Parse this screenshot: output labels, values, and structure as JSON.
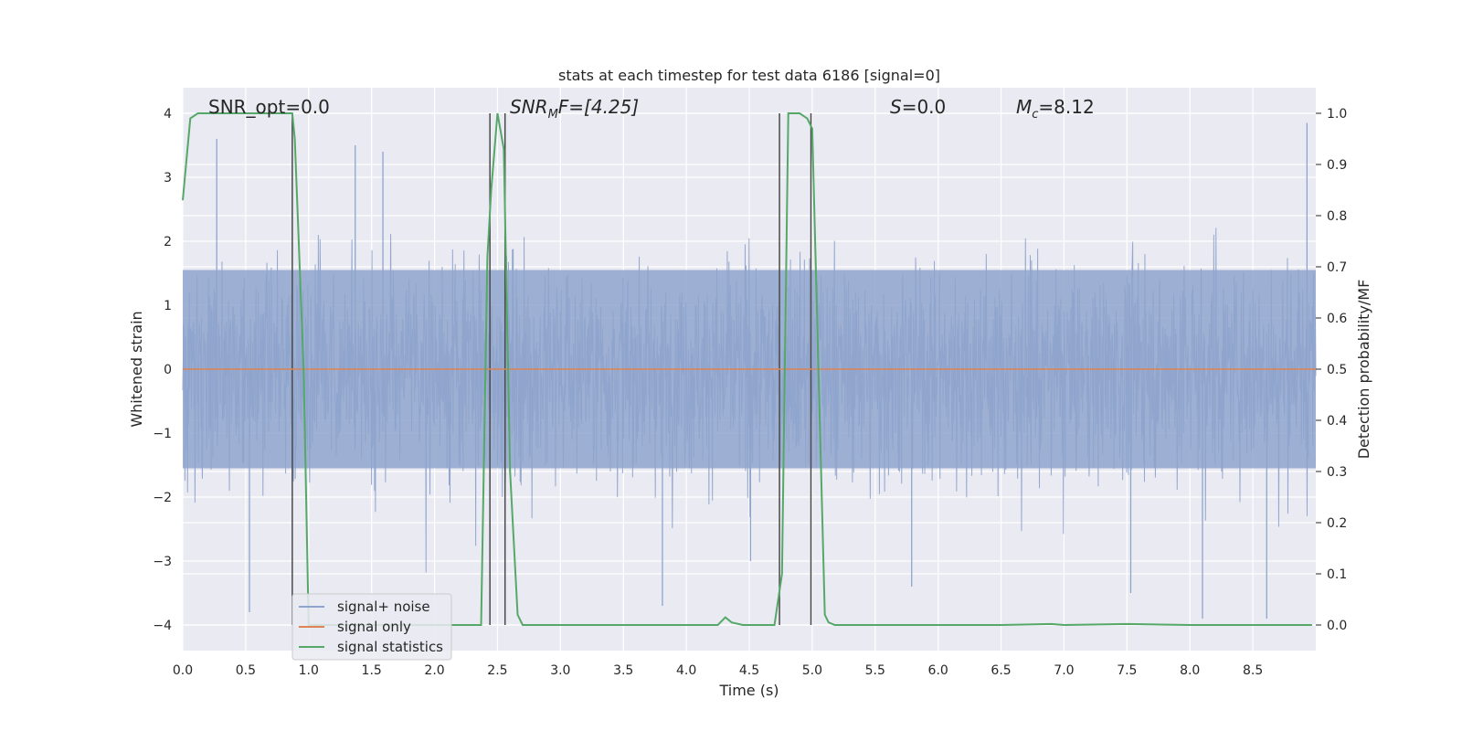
{
  "chart_data": {
    "type": "line",
    "title": "stats at each timestep for test data 6186 [signal=0]",
    "xlabel": "Time (s)",
    "ylabel": "Whitened strain",
    "ylabel_right": "Detection probability/MF",
    "xlim": [
      0,
      9.0
    ],
    "ylim": [
      -4.4,
      4.4
    ],
    "ylim_right": [
      -0.05,
      1.05
    ],
    "x_ticks": [
      "0.0",
      "0.5",
      "1.0",
      "1.5",
      "2.0",
      "2.5",
      "3.0",
      "3.5",
      "4.0",
      "4.5",
      "5.0",
      "5.5",
      "6.0",
      "6.5",
      "7.0",
      "7.5",
      "8.0",
      "8.5"
    ],
    "y_ticks": [
      "4",
      "3",
      "2",
      "1",
      "0",
      "−1",
      "−2",
      "−3",
      "−4"
    ],
    "y_right_ticks": [
      "1.0",
      "0.9",
      "0.8",
      "0.7",
      "0.6",
      "0.5",
      "0.4",
      "0.3",
      "0.2",
      "0.1",
      "0.0"
    ],
    "grid": true,
    "legend_position": "lower-left",
    "annotations": {
      "snr_opt": "SNR_opt=0.0",
      "snr_mf_main": "SNR",
      "snr_mf_sub": "M",
      "snr_mf_tail": "F=[4.25]",
      "s_label": "S",
      "s_value": "=0.0",
      "mc_label": "M",
      "mc_sub": "c",
      "mc_value": "=8.12"
    },
    "series": [
      {
        "name": "signal+ noise",
        "color": "#8fa4cc",
        "description": "dense whitened noise band, approx range -2.5 to 2.7 with spikes",
        "spikes": [
          {
            "x": 0.27,
            "y": 3.6
          },
          {
            "x": 0.53,
            "y": -3.8
          },
          {
            "x": 1.37,
            "y": 3.5
          },
          {
            "x": 1.59,
            "y": 3.4
          },
          {
            "x": 3.81,
            "y": -3.7
          },
          {
            "x": 4.51,
            "y": -3.0
          },
          {
            "x": 5.79,
            "y": -3.4
          },
          {
            "x": 7.53,
            "y": -3.5
          },
          {
            "x": 8.1,
            "y": -3.9
          },
          {
            "x": 8.61,
            "y": -3.9
          },
          {
            "x": 8.93,
            "y": 3.85
          }
        ]
      },
      {
        "name": "signal only",
        "color": "#dd8452",
        "x": [
          0,
          9.0
        ],
        "y": [
          0,
          0
        ]
      },
      {
        "name": "signal statistics",
        "color": "#55a868",
        "axis": "right",
        "x": [
          0.0,
          0.06,
          0.12,
          0.2,
          0.4,
          0.6,
          0.87,
          0.89,
          0.96,
          1.0,
          1.1,
          1.5,
          2.0,
          2.37,
          2.42,
          2.45,
          2.5,
          2.55,
          2.6,
          2.66,
          2.7,
          3.0,
          3.5,
          4.0,
          4.25,
          4.31,
          4.36,
          4.45,
          4.6,
          4.7,
          4.76,
          4.81,
          4.9,
          4.96,
          5.0,
          5.1,
          5.13,
          5.18,
          5.5,
          6.0,
          6.5,
          6.9,
          7.0,
          7.5,
          8.0,
          8.5,
          8.97
        ],
        "y": [
          0.83,
          0.99,
          1.0,
          1.0,
          1.0,
          1.0,
          1.0,
          0.95,
          0.5,
          0.0,
          0.0,
          0.0,
          0.0,
          0.0,
          0.72,
          0.85,
          1.0,
          0.93,
          0.3,
          0.02,
          0.0,
          0.0,
          0.0,
          0.0,
          0.0,
          0.015,
          0.005,
          0.0,
          0.0,
          0.0,
          0.1,
          1.0,
          1.0,
          0.99,
          0.97,
          0.02,
          0.005,
          0.0,
          0.0,
          0.0,
          0.0,
          0.002,
          0.0,
          0.002,
          0.0,
          0.0,
          0.0
        ]
      }
    ],
    "vertical_lines": [
      0.87,
      2.44,
      2.56,
      4.74,
      4.99
    ]
  }
}
